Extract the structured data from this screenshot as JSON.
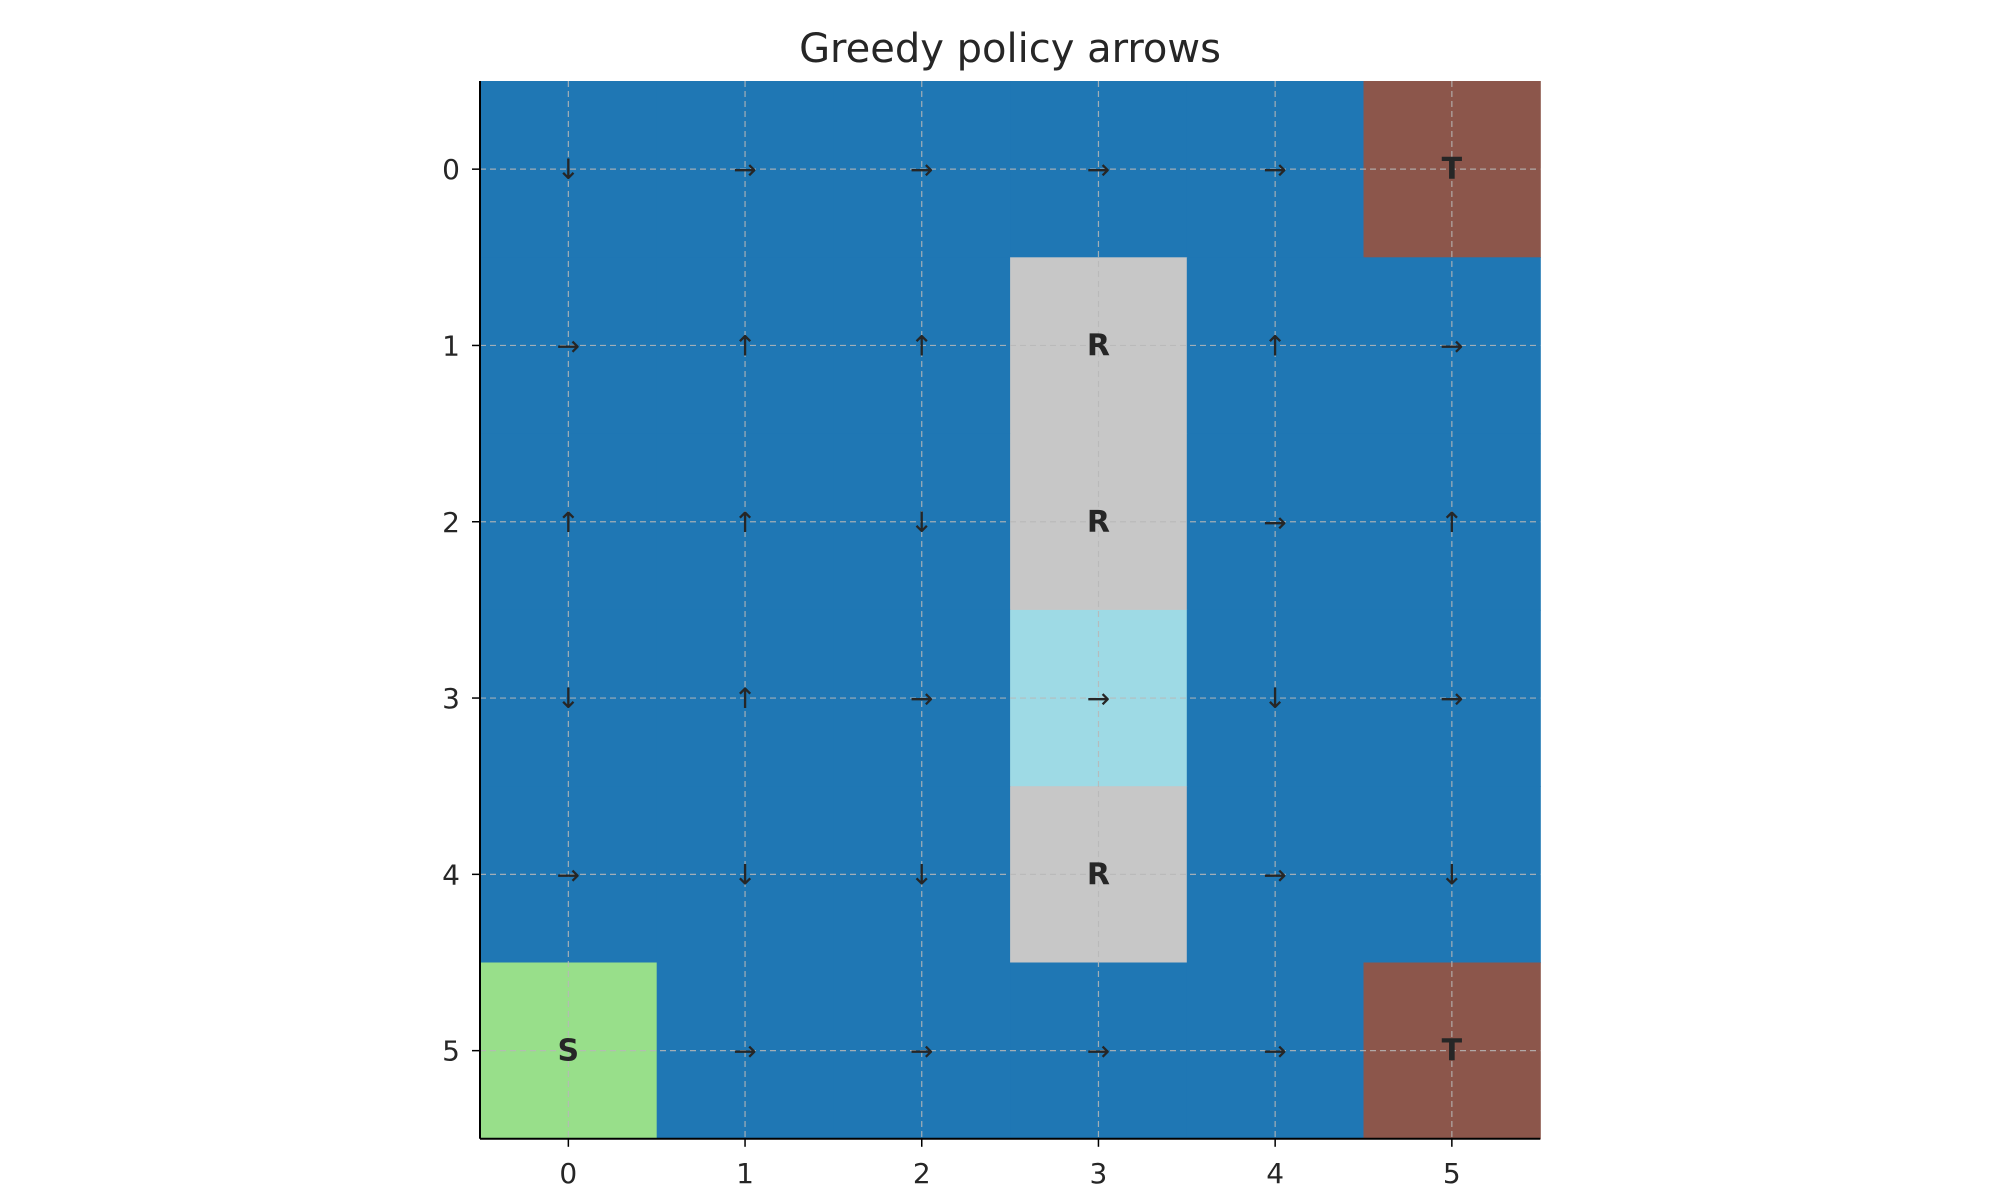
{
  "chart_data": {
    "type": "heatmap",
    "title": "Greedy policy arrows",
    "xlabel": "",
    "ylabel": "",
    "x_ticks": [
      "0",
      "1",
      "2",
      "3",
      "4",
      "5"
    ],
    "y_ticks": [
      "0",
      "1",
      "2",
      "3",
      "4",
      "5"
    ],
    "xlim": [
      -0.5,
      5.5
    ],
    "ylim": [
      5.5,
      -0.5
    ],
    "grid": true,
    "colors": {
      "normal": "#1f77b4",
      "terminal": "#8c564b",
      "start": "#98df8a",
      "river": "#c7c7c7",
      "highlight": "#9edae5"
    },
    "cell_types": [
      [
        "normal",
        "normal",
        "normal",
        "normal",
        "normal",
        "terminal"
      ],
      [
        "normal",
        "normal",
        "normal",
        "river",
        "normal",
        "normal"
      ],
      [
        "normal",
        "normal",
        "normal",
        "river",
        "normal",
        "normal"
      ],
      [
        "normal",
        "normal",
        "normal",
        "highlight",
        "normal",
        "normal"
      ],
      [
        "normal",
        "normal",
        "normal",
        "river",
        "normal",
        "normal"
      ],
      [
        "start",
        "normal",
        "normal",
        "normal",
        "normal",
        "terminal"
      ]
    ],
    "cell_labels": [
      [
        "↓",
        "→",
        "→",
        "→",
        "→",
        "T"
      ],
      [
        "→",
        "↑",
        "↑",
        "R",
        "↑",
        "→"
      ],
      [
        "↑",
        "↑",
        "↓",
        "R",
        "→",
        "↑"
      ],
      [
        "↓",
        "↑",
        "→",
        "→",
        "↓",
        "→"
      ],
      [
        "→",
        "↓",
        "↓",
        "R",
        "→",
        "↓"
      ],
      [
        "S",
        "→",
        "→",
        "→",
        "→",
        "T"
      ]
    ]
  }
}
